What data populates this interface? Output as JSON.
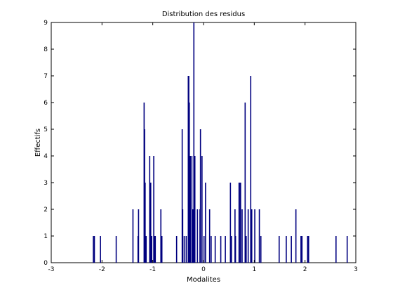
{
  "chart_data": {
    "type": "bar",
    "title": "Distribution des residus",
    "xlabel": "Modalites",
    "ylabel": "Effectifs",
    "xlim": [
      -3,
      3
    ],
    "ylim": [
      0,
      9
    ],
    "xticks": [
      "-3",
      "-2",
      "-1",
      "0",
      "1",
      "2",
      "3"
    ],
    "yticks": [
      "0",
      "1",
      "2",
      "3",
      "4",
      "5",
      "6",
      "7",
      "8",
      "9"
    ],
    "grid": false,
    "bar_color": "#00007f",
    "x": [
      -2.17,
      -2.15,
      -2.03,
      -1.72,
      -1.39,
      -1.29,
      -1.28,
      -1.17,
      -1.16,
      -1.15,
      -1.13,
      -1.06,
      -1.04,
      -1.02,
      -0.98,
      -0.97,
      -0.95,
      -0.84,
      -0.82,
      -0.53,
      -0.42,
      -0.41,
      -0.38,
      -0.34,
      -0.3,
      -0.29,
      -0.28,
      -0.26,
      -0.23,
      -0.21,
      -0.19,
      -0.17,
      -0.12,
      -0.07,
      -0.06,
      -0.03,
      0.01,
      0.04,
      0.12,
      0.15,
      0.23,
      0.34,
      0.43,
      0.53,
      0.55,
      0.62,
      0.63,
      0.7,
      0.72,
      0.73,
      0.76,
      0.82,
      0.84,
      0.88,
      0.93,
      0.95,
      1.01,
      1.1,
      1.13,
      1.49,
      1.63,
      1.73,
      1.82,
      1.92,
      1.94,
      2.05,
      2.07,
      2.61,
      2.83
    ],
    "values": [
      1,
      1,
      1,
      1,
      2,
      1,
      2,
      6,
      5,
      3,
      1,
      4,
      3,
      1,
      4,
      1,
      1,
      2,
      1,
      1,
      5,
      2,
      1,
      1,
      7,
      7,
      6,
      4,
      4,
      2,
      9,
      4,
      2,
      2,
      5,
      4,
      1,
      3,
      2,
      1,
      1,
      1,
      1,
      3,
      1,
      2,
      1,
      3,
      3,
      3,
      2,
      6,
      1,
      2,
      7,
      2,
      2,
      2,
      1,
      1,
      1,
      1,
      2,
      1,
      1,
      1,
      1,
      1,
      1
    ]
  }
}
